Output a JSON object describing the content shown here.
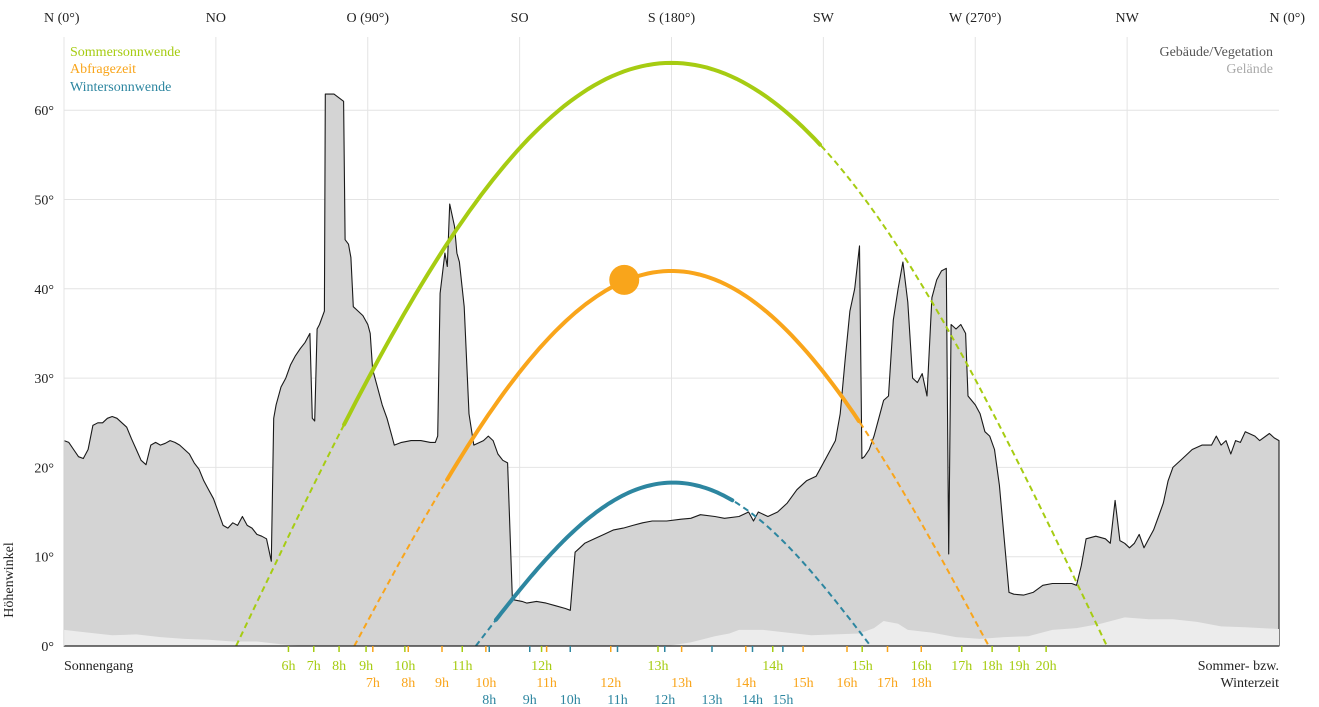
{
  "chart_data": {
    "type": "line",
    "x_axis": {
      "label": "",
      "range": [
        0,
        360
      ],
      "ticks": [
        {
          "value": 0,
          "label": "N (0°)"
        },
        {
          "value": 45,
          "label": "NO"
        },
        {
          "value": 90,
          "label": "O (90°)"
        },
        {
          "value": 135,
          "label": "SO"
        },
        {
          "value": 180,
          "label": "S (180°)"
        },
        {
          "value": 225,
          "label": "SW"
        },
        {
          "value": 270,
          "label": "W (270°)"
        },
        {
          "value": 315,
          "label": "NW"
        },
        {
          "value": 360,
          "label": "N (0°)"
        }
      ]
    },
    "y_axis": {
      "label": "Höhenwinkel",
      "range": [
        0,
        66
      ],
      "ticks": [
        {
          "value": 0,
          "label": "0°"
        },
        {
          "value": 10,
          "label": "10°"
        },
        {
          "value": 20,
          "label": "20°"
        },
        {
          "value": 30,
          "label": "30°"
        },
        {
          "value": 40,
          "label": "40°"
        },
        {
          "value": 50,
          "label": "50°"
        },
        {
          "value": 60,
          "label": "60°"
        }
      ]
    },
    "grid": true,
    "legend_left": [
      {
        "label": "Sommersonnwende",
        "color": "#a6cc12"
      },
      {
        "label": "Abfragezeit",
        "color": "#f9a51b"
      },
      {
        "label": "Wintersonnwende",
        "color": "#2d86a0"
      }
    ],
    "legend_right": [
      {
        "label": "Gebäude/Vegetation",
        "color": "#555555"
      },
      {
        "label": "Gelände",
        "color": "#aaaaaa"
      }
    ],
    "corner_left": "Sonnengang",
    "corner_right_line1": "Sommer- bzw.",
    "corner_right_line2": "Winterzeit",
    "horizon_buildings": [
      [
        0,
        23
      ],
      [
        1,
        22.8
      ],
      [
        2,
        22
      ],
      [
        3,
        21.2
      ],
      [
        4,
        21
      ],
      [
        5,
        22
      ],
      [
        6,
        24.7
      ],
      [
        7,
        25
      ],
      [
        8,
        25
      ],
      [
        9,
        25.5
      ],
      [
        10,
        25.7
      ],
      [
        11,
        25.5
      ],
      [
        12,
        25
      ],
      [
        13,
        24.5
      ],
      [
        14,
        23.2
      ],
      [
        15,
        22
      ],
      [
        16,
        20.8
      ],
      [
        17,
        20.3
      ],
      [
        18,
        22.5
      ],
      [
        19,
        22.8
      ],
      [
        20,
        22.5
      ],
      [
        21,
        22.7
      ],
      [
        22,
        23
      ],
      [
        23,
        22.8
      ],
      [
        24,
        22.5
      ],
      [
        25,
        22
      ],
      [
        26,
        21.5
      ],
      [
        27,
        20.5
      ],
      [
        28,
        19.8
      ],
      [
        29,
        18.5
      ],
      [
        30,
        17.5
      ],
      [
        31,
        16.5
      ],
      [
        32,
        15
      ],
      [
        33,
        13.5
      ],
      [
        34,
        13.2
      ],
      [
        35,
        13.8
      ],
      [
        36,
        13.5
      ],
      [
        37,
        14.5
      ],
      [
        38,
        13.5
      ],
      [
        39,
        13.2
      ],
      [
        40,
        12.5
      ],
      [
        41,
        12.3
      ],
      [
        42,
        12
      ],
      [
        43,
        9.5
      ],
      [
        43.5,
        25.5
      ],
      [
        44,
        27
      ],
      [
        45,
        29
      ],
      [
        46,
        30
      ],
      [
        47,
        31.5
      ],
      [
        48,
        32.5
      ],
      [
        49,
        33.3
      ],
      [
        50,
        34
      ],
      [
        51,
        35
      ],
      [
        51.5,
        25.5
      ],
      [
        52,
        25.2
      ],
      [
        52.5,
        35.5
      ],
      [
        53,
        36
      ],
      [
        54,
        37.5
      ],
      [
        54.2,
        61.8
      ],
      [
        56,
        61.8
      ],
      [
        58,
        61
      ],
      [
        58.3,
        45.5
      ],
      [
        59,
        45
      ],
      [
        59.5,
        43.5
      ],
      [
        60,
        38
      ],
      [
        61,
        37.5
      ],
      [
        62,
        37
      ],
      [
        63,
        36
      ],
      [
        63.5,
        35
      ],
      [
        64,
        31
      ],
      [
        65,
        29
      ],
      [
        66,
        27
      ],
      [
        67,
        25.5
      ],
      [
        68,
        23.5
      ],
      [
        68.5,
        22.5
      ],
      [
        70,
        22.8
      ],
      [
        72,
        23
      ],
      [
        74,
        23
      ],
      [
        76,
        22.8
      ],
      [
        77,
        22.8
      ],
      [
        77.5,
        23.5
      ],
      [
        78,
        39.5
      ],
      [
        79,
        44
      ],
      [
        79.5,
        42.5
      ],
      [
        80,
        49.5
      ],
      [
        81,
        47
      ],
      [
        81.5,
        44
      ],
      [
        82,
        43
      ],
      [
        83,
        38
      ],
      [
        84,
        26
      ],
      [
        85,
        22.5
      ],
      [
        87,
        23
      ],
      [
        88,
        23.5
      ],
      [
        89,
        23
      ],
      [
        90,
        21.5
      ],
      [
        91,
        20.8
      ],
      [
        92,
        20.5
      ],
      [
        93,
        5.2
      ],
      [
        95,
        5
      ],
      [
        96,
        4.8
      ],
      [
        98,
        5
      ],
      [
        100,
        4.8
      ],
      [
        102,
        4.5
      ],
      [
        104,
        4.2
      ],
      [
        105,
        4
      ],
      [
        106,
        10.5
      ],
      [
        107,
        11
      ],
      [
        108,
        11.5
      ],
      [
        110,
        12
      ],
      [
        112,
        12.5
      ],
      [
        114,
        13
      ],
      [
        116,
        13.2
      ],
      [
        118,
        13.5
      ],
      [
        120,
        13.8
      ],
      [
        122,
        14
      ],
      [
        125,
        14
      ],
      [
        128,
        14.2
      ],
      [
        130,
        14.3
      ],
      [
        132,
        14.7
      ],
      [
        135,
        14.5
      ],
      [
        137,
        14.3
      ],
      [
        140,
        14.5
      ],
      [
        142,
        15
      ],
      [
        143,
        14
      ],
      [
        144,
        15
      ],
      [
        146,
        14.5
      ],
      [
        148,
        15
      ],
      [
        150,
        16
      ],
      [
        152,
        17.5
      ],
      [
        154,
        18.5
      ],
      [
        156,
        19
      ],
      [
        158,
        21
      ],
      [
        160,
        23
      ],
      [
        161,
        26
      ],
      [
        162,
        32
      ],
      [
        163,
        37.5
      ],
      [
        164,
        40
      ],
      [
        165,
        44.8
      ],
      [
        165.5,
        21
      ],
      [
        166,
        21.2
      ],
      [
        167,
        22
      ],
      [
        168,
        23.5
      ],
      [
        169,
        25.5
      ],
      [
        170,
        27.5
      ],
      [
        171,
        28
      ],
      [
        172,
        36.5
      ],
      [
        173,
        40
      ],
      [
        174,
        43
      ],
      [
        175,
        38.5
      ],
      [
        176,
        30
      ],
      [
        177,
        29.5
      ],
      [
        178,
        30.5
      ],
      [
        179,
        28
      ],
      [
        180,
        39
      ],
      [
        181,
        41
      ],
      [
        182,
        42
      ],
      [
        183,
        42.3
      ],
      [
        183.5,
        10.3
      ],
      [
        184,
        36
      ],
      [
        185,
        35.5
      ],
      [
        186,
        36
      ],
      [
        187,
        35
      ],
      [
        187.5,
        28
      ],
      [
        189,
        27
      ],
      [
        190,
        26
      ],
      [
        191,
        24
      ],
      [
        192,
        23.5
      ],
      [
        193,
        22
      ],
      [
        194,
        18
      ],
      [
        195,
        12
      ],
      [
        196,
        6
      ],
      [
        197,
        5.8
      ],
      [
        199,
        5.7
      ],
      [
        201,
        6
      ],
      [
        203,
        6.8
      ],
      [
        205,
        7
      ],
      [
        207,
        7
      ],
      [
        209,
        7
      ],
      [
        210,
        6.8
      ],
      [
        211,
        9
      ],
      [
        212,
        12
      ],
      [
        214,
        12.3
      ],
      [
        216,
        12
      ],
      [
        217,
        11.5
      ],
      [
        218,
        16.3
      ],
      [
        219,
        11.8
      ],
      [
        220,
        11.5
      ],
      [
        221,
        11
      ],
      [
        222,
        11.5
      ],
      [
        223,
        12.5
      ],
      [
        224,
        11
      ],
      [
        225,
        12
      ],
      [
        226,
        13
      ],
      [
        227,
        14.5
      ],
      [
        228,
        16
      ],
      [
        229,
        18.5
      ],
      [
        230,
        20
      ],
      [
        232,
        21
      ],
      [
        234,
        22
      ],
      [
        236,
        22.5
      ],
      [
        238,
        22.5
      ],
      [
        239,
        23.5
      ],
      [
        240,
        22.5
      ],
      [
        241,
        23
      ],
      [
        242,
        21.5
      ],
      [
        243,
        23
      ],
      [
        244,
        22.8
      ],
      [
        245,
        24
      ],
      [
        247,
        23.5
      ],
      [
        248,
        23
      ],
      [
        250,
        23.8
      ],
      [
        251,
        23.3
      ],
      [
        252,
        23
      ]
    ],
    "horizon_terrain": [
      [
        0,
        1.8
      ],
      [
        5,
        1.5
      ],
      [
        10,
        1.2
      ],
      [
        15,
        1.3
      ],
      [
        20,
        1
      ],
      [
        25,
        0.8
      ],
      [
        30,
        0.7
      ],
      [
        35,
        0.5
      ],
      [
        40,
        0.5
      ],
      [
        45,
        0.2
      ],
      [
        50,
        0
      ],
      [
        55,
        0
      ],
      [
        60,
        0
      ],
      [
        65,
        0
      ],
      [
        70,
        0
      ],
      [
        75,
        0
      ],
      [
        80,
        0
      ],
      [
        85,
        0
      ],
      [
        90,
        0
      ],
      [
        95,
        0
      ],
      [
        100,
        0
      ],
      [
        105,
        0
      ],
      [
        110,
        0
      ],
      [
        115,
        0
      ],
      [
        120,
        0
      ],
      [
        125,
        0
      ],
      [
        130,
        0.4
      ],
      [
        135,
        1.1
      ],
      [
        138,
        1.4
      ],
      [
        140,
        1.8
      ],
      [
        145,
        1.8
      ],
      [
        150,
        1.5
      ],
      [
        155,
        1.2
      ],
      [
        160,
        1.3
      ],
      [
        165,
        1.4
      ],
      [
        168,
        2
      ],
      [
        170,
        2.8
      ],
      [
        173,
        2.5
      ],
      [
        175,
        1.8
      ],
      [
        180,
        1.5
      ],
      [
        185,
        1
      ],
      [
        190,
        0.8
      ],
      [
        195,
        1
      ],
      [
        200,
        1.1
      ],
      [
        205,
        1.8
      ],
      [
        210,
        2
      ],
      [
        215,
        2.5
      ],
      [
        220,
        3.2
      ],
      [
        225,
        3
      ],
      [
        230,
        3
      ],
      [
        235,
        2.7
      ],
      [
        240,
        2.2
      ],
      [
        245,
        2.1
      ],
      [
        252,
        1.9
      ]
    ],
    "series": [
      {
        "name": "Sommersonnwende",
        "color": "#a6cc12",
        "peak_altitude": 65.3,
        "rise_azimuth": 51,
        "set_azimuth": 309,
        "visible_segments": [
          [
            83,
            224
          ]
        ],
        "hours": [
          {
            "label": "6h",
            "az": 66.5
          },
          {
            "label": "7h",
            "az": 74
          },
          {
            "label": "8h",
            "az": 81.5
          },
          {
            "label": "9h",
            "az": 89.5
          },
          {
            "label": "10h",
            "az": 101
          },
          {
            "label": "11h",
            "az": 118
          },
          {
            "label": "12h",
            "az": 141.5
          },
          {
            "label": "13h",
            "az": 176
          },
          {
            "label": "14h",
            "az": 210
          },
          {
            "label": "15h",
            "az": 236.5
          },
          {
            "label": "16h",
            "az": 254
          },
          {
            "label": "17h",
            "az": 266
          },
          {
            "label": "18h",
            "az": 275
          },
          {
            "label": "19h",
            "az": 283
          },
          {
            "label": "20h",
            "az": 291
          }
        ]
      },
      {
        "name": "Abfragezeit",
        "color": "#f9a51b",
        "peak_altitude": 42,
        "rise_azimuth": 86,
        "set_azimuth": 274,
        "visible_segments": [
          [
            113.5,
            235.5
          ]
        ],
        "sun_position": {
          "azimuth": 166,
          "altitude": 41
        },
        "hours": [
          {
            "label": "7h",
            "az": 91.5
          },
          {
            "label": "8h",
            "az": 102
          },
          {
            "label": "9h",
            "az": 112
          },
          {
            "label": "10h",
            "az": 125
          },
          {
            "label": "11h",
            "az": 143
          },
          {
            "label": "12h",
            "az": 162
          },
          {
            "label": "13h",
            "az": 183
          },
          {
            "label": "14h",
            "az": 202
          },
          {
            "label": "15h",
            "az": 219
          },
          {
            "label": "16h",
            "az": 232
          },
          {
            "label": "17h",
            "az": 244
          },
          {
            "label": "18h",
            "az": 254
          }
        ]
      },
      {
        "name": "Wintersonnwende",
        "color": "#2d86a0",
        "peak_altitude": 18.3,
        "rise_azimuth": 122,
        "set_azimuth": 239,
        "visible_segments": [
          [
            128,
            198
          ]
        ],
        "hours": [
          {
            "label": "8h",
            "az": 126
          },
          {
            "label": "9h",
            "az": 138
          },
          {
            "label": "10h",
            "az": 150
          },
          {
            "label": "11h",
            "az": 164
          },
          {
            "label": "12h",
            "az": 178
          },
          {
            "label": "13h",
            "az": 192
          },
          {
            "label": "14h",
            "az": 204
          },
          {
            "label": "15h",
            "az": 213
          }
        ]
      }
    ]
  }
}
